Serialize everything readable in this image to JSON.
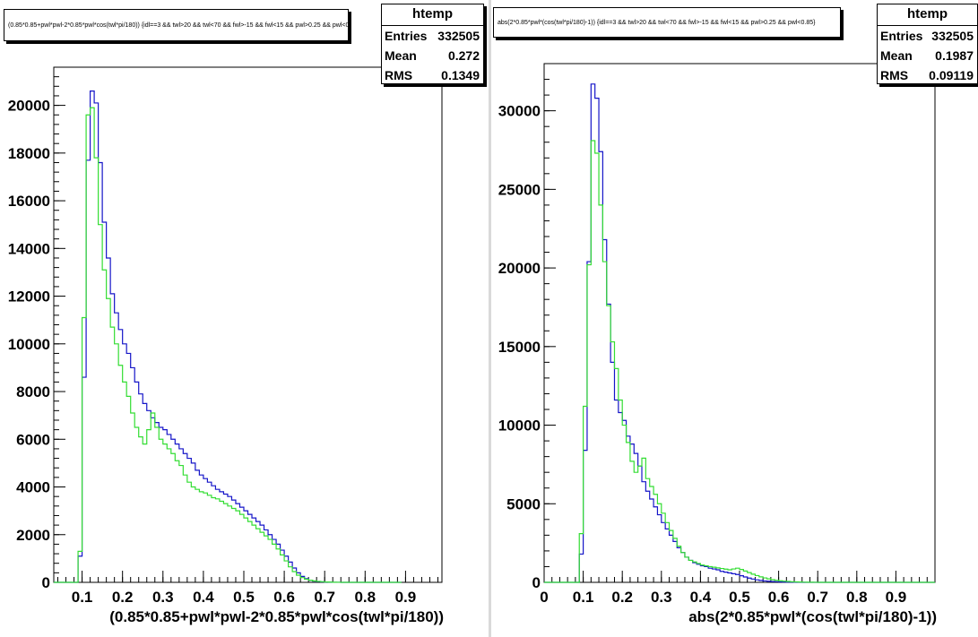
{
  "stats_title": "htemp",
  "stats_labels": {
    "entries": "Entries",
    "mean": "Mean",
    "rms": "RMS"
  },
  "colors": {
    "series_1": "#1515c8",
    "series_2": "#33dd33",
    "axis": "#000000",
    "divider": "#d9d9d9"
  },
  "left": {
    "title": "(0.85*0.85+pwl*pwl-2*0.85*pwl*cos(twl*pi/180)) {idl==3 && twl>20 && twl<70 && fwl>-15 && fwl<15 && pwl>0.25 && pwl<0.85}",
    "entries": "332505",
    "mean": "0.272",
    "rms": "0.1349"
  },
  "right": {
    "title": "abs(2*0.85*pwl*(cos(twl*pi/180)-1)) {idl==3 && twl>20 && twl<70 && fwl>-15 && fwl<15 && pwl>0.25 && pwl<0.85}",
    "entries": "332505",
    "mean": "0.1987",
    "rms": "0.09119"
  },
  "chart_data": [
    {
      "type": "histogram",
      "xlabel": "(0.85*0.85+pwl*pwl-2*0.85*pwl*cos(twl*pi/180))",
      "xlim": [
        0.03,
        0.99
      ],
      "ylim": [
        0,
        21600
      ],
      "xticks": [
        0.1,
        0.2,
        0.3,
        0.4,
        0.5,
        0.6,
        0.7,
        0.8,
        0.9
      ],
      "yticks": [
        0,
        2000,
        4000,
        6000,
        8000,
        10000,
        12000,
        14000,
        16000,
        18000,
        20000
      ],
      "bin_start": 0.03,
      "bin_width": 0.01,
      "series": [
        {
          "color": "#1515c8",
          "values": [
            0,
            0,
            0,
            0,
            0,
            0,
            1100,
            8600,
            17700,
            20600,
            20100,
            17600,
            15100,
            13600,
            12100,
            11300,
            10600,
            10000,
            9600,
            9000,
            8400,
            7900,
            7500,
            7200,
            6900,
            6700,
            6500,
            6400,
            6200,
            6000,
            5800,
            5600,
            5400,
            5200,
            5000,
            4700,
            4500,
            4350,
            4200,
            4050,
            3900,
            3800,
            3700,
            3600,
            3450,
            3300,
            3150,
            3000,
            2850,
            2700,
            2550,
            2400,
            2200,
            2000,
            1800,
            1600,
            1350,
            1100,
            850,
            600,
            400,
            250,
            150,
            90,
            50,
            30,
            20,
            10,
            5,
            3,
            2,
            1,
            0,
            0,
            0,
            0,
            0,
            0,
            0,
            0,
            0,
            0,
            0,
            0,
            0,
            0
          ]
        },
        {
          "color": "#33dd33",
          "values": [
            0,
            0,
            0,
            0,
            0,
            0,
            1300,
            11100,
            19600,
            19900,
            17800,
            15000,
            13100,
            11900,
            10700,
            10000,
            9100,
            8400,
            7800,
            7100,
            6500,
            6100,
            5800,
            6400,
            7100,
            6500,
            6000,
            5800,
            5600,
            5400,
            5100,
            4900,
            4500,
            4200,
            4000,
            3900,
            3800,
            3750,
            3650,
            3550,
            3500,
            3400,
            3300,
            3200,
            3100,
            3000,
            2850,
            2700,
            2550,
            2400,
            2250,
            2100,
            1950,
            1800,
            1600,
            1400,
            1150,
            900,
            650,
            450,
            300,
            200,
            130,
            90,
            60,
            40,
            25,
            15,
            8,
            4,
            2,
            1,
            0,
            0,
            0,
            0,
            0,
            0,
            0,
            0,
            0,
            0,
            0,
            0,
            0,
            0
          ]
        }
      ]
    },
    {
      "type": "histogram",
      "xlabel": "abs(2*0.85*pwl*(cos(twl*pi/180)-1))",
      "xlim": [
        0,
        1
      ],
      "ylim": [
        0,
        33000
      ],
      "xticks": [
        0,
        0.1,
        0.2,
        0.3,
        0.4,
        0.5,
        0.6,
        0.7,
        0.8,
        0.9
      ],
      "yticks": [
        0,
        5000,
        10000,
        15000,
        20000,
        25000,
        30000
      ],
      "bin_start": 0,
      "bin_width": 0.01,
      "series": [
        {
          "color": "#1515c8",
          "values": [
            0,
            0,
            0,
            0,
            0,
            0,
            0,
            0,
            0,
            1800,
            8400,
            20400,
            31700,
            30800,
            27400,
            21800,
            17700,
            14000,
            11600,
            10800,
            10300,
            9300,
            8800,
            8200,
            7400,
            6400,
            5800,
            5300,
            4800,
            4300,
            3800,
            3400,
            3000,
            2600,
            2200,
            1900,
            1600,
            1400,
            1250,
            1150,
            1050,
            1000,
            900,
            850,
            800,
            700,
            650,
            600,
            550,
            500,
            420,
            340,
            270,
            210,
            160,
            120,
            90,
            70,
            50,
            40,
            30,
            20,
            15,
            10,
            5,
            3,
            2,
            1,
            0,
            0,
            0,
            0,
            0,
            0,
            0,
            0,
            0,
            0,
            0,
            0,
            0,
            0,
            0,
            0,
            0,
            0,
            0,
            0,
            0,
            0,
            0,
            0,
            0,
            0,
            0,
            0,
            0,
            0,
            0,
            0,
            0
          ]
        },
        {
          "color": "#33dd33",
          "values": [
            0,
            0,
            0,
            0,
            0,
            0,
            0,
            0,
            0,
            3100,
            11200,
            20200,
            28100,
            27300,
            24000,
            20400,
            17600,
            15300,
            13600,
            11600,
            10000,
            8900,
            7700,
            7000,
            7400,
            7900,
            6600,
            6100,
            5600,
            5000,
            4400,
            3800,
            3300,
            2800,
            2300,
            1900,
            1600,
            1400,
            1300,
            1200,
            1100,
            1050,
            1000,
            960,
            920,
            880,
            840,
            800,
            850,
            900,
            820,
            720,
            620,
            520,
            430,
            350,
            280,
            220,
            170,
            130,
            100,
            75,
            55,
            40,
            30,
            20,
            12,
            8,
            5,
            3,
            2,
            1,
            0,
            0,
            0,
            0,
            0,
            0,
            0,
            0,
            0,
            0,
            0,
            0,
            0,
            0,
            0,
            0,
            0,
            0,
            0,
            0,
            0,
            0,
            0,
            0,
            0,
            0,
            0,
            0
          ]
        }
      ]
    }
  ]
}
